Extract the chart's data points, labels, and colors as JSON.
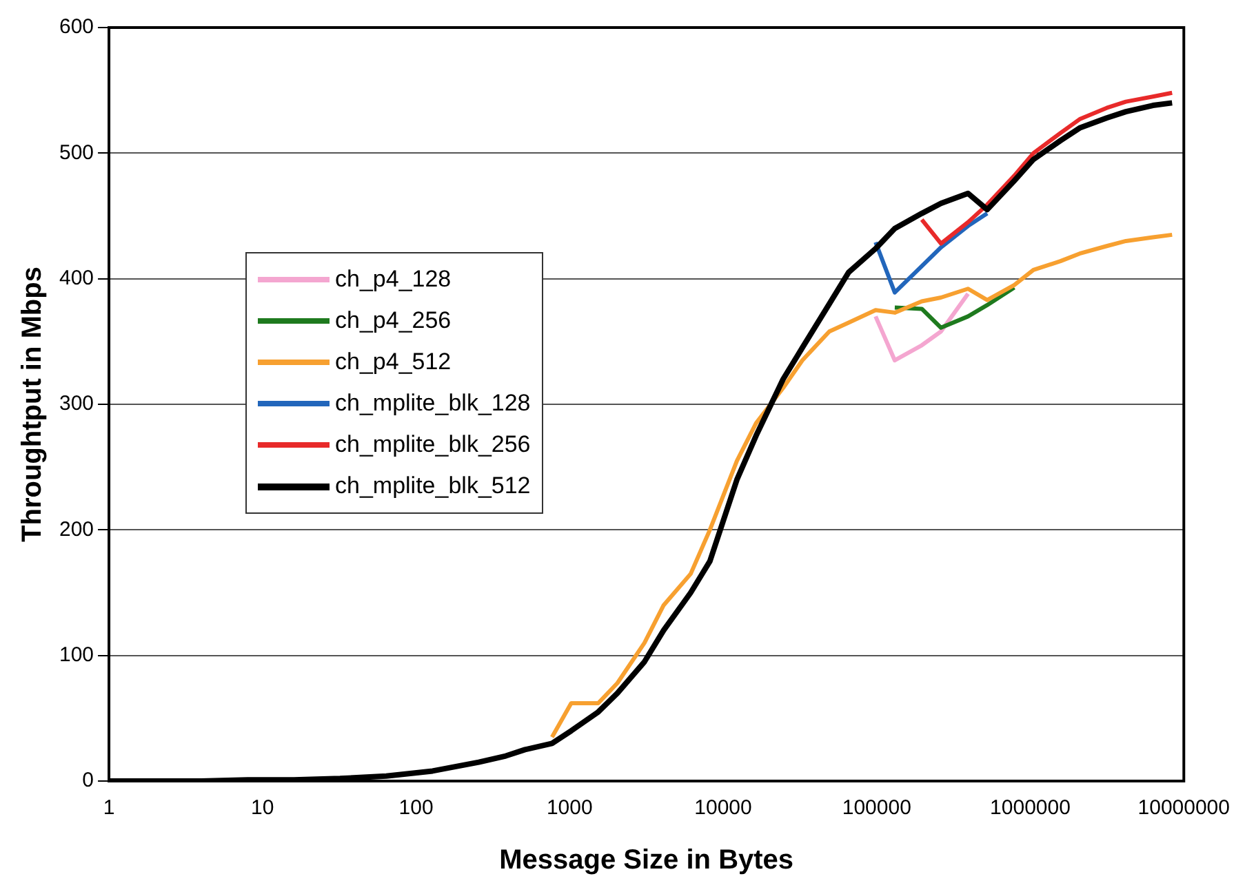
{
  "chart_data": {
    "type": "line",
    "xlabel": "Message Size in Bytes",
    "ylabel": "Throughtput in Mbps",
    "x": [
      1,
      2,
      4,
      8,
      16,
      32,
      64,
      128,
      256,
      384,
      512,
      768,
      1024,
      1536,
      2048,
      3072,
      4096,
      6144,
      8192,
      12288,
      16384,
      24576,
      32768,
      49152,
      65536,
      98304,
      131072,
      196608,
      262144,
      393216,
      524288,
      786432,
      1048576,
      1572864,
      2097152,
      3145728,
      4194304,
      6291456,
      8388608
    ],
    "series": [
      {
        "name": "ch_p4_128",
        "color": "#f4a6d0",
        "values": [
          null,
          null,
          null,
          null,
          null,
          null,
          null,
          null,
          null,
          null,
          null,
          null,
          null,
          null,
          null,
          null,
          null,
          null,
          null,
          null,
          null,
          null,
          null,
          null,
          null,
          370,
          335,
          347,
          358,
          388,
          null,
          null,
          null,
          null,
          null,
          null,
          null,
          null,
          null
        ]
      },
      {
        "name": "ch_p4_256",
        "color": "#1e7a1e",
        "values": [
          null,
          null,
          null,
          null,
          null,
          null,
          null,
          null,
          null,
          null,
          null,
          null,
          null,
          null,
          null,
          null,
          null,
          null,
          null,
          null,
          null,
          null,
          null,
          null,
          null,
          null,
          377,
          376,
          361,
          370,
          379,
          393,
          null,
          null,
          null,
          null,
          null,
          null,
          null
        ]
      },
      {
        "name": "ch_p4_512",
        "color": "#f7a030",
        "values": [
          null,
          null,
          null,
          null,
          null,
          null,
          null,
          null,
          null,
          null,
          null,
          35,
          62,
          62,
          78,
          110,
          140,
          165,
          200,
          255,
          285,
          313,
          335,
          358,
          365,
          375,
          373,
          382,
          385,
          392,
          383,
          395,
          407,
          414,
          420,
          426,
          430,
          433,
          435
        ]
      },
      {
        "name": "ch_mplite_blk_128",
        "color": "#2266bb",
        "values": [
          null,
          null,
          null,
          null,
          null,
          null,
          null,
          null,
          null,
          null,
          null,
          null,
          null,
          null,
          null,
          null,
          null,
          null,
          null,
          null,
          null,
          null,
          null,
          null,
          null,
          429,
          389,
          410,
          425,
          442,
          452,
          null,
          null,
          null,
          null,
          null,
          null,
          null,
          null
        ]
      },
      {
        "name": "ch_mplite_blk_256",
        "color": "#e82a2a",
        "values": [
          null,
          null,
          null,
          null,
          null,
          null,
          null,
          null,
          null,
          null,
          null,
          null,
          null,
          null,
          null,
          null,
          null,
          null,
          null,
          null,
          null,
          null,
          null,
          null,
          null,
          null,
          null,
          447,
          428,
          445,
          459,
          482,
          500,
          516,
          527,
          536,
          541,
          545,
          548
        ]
      },
      {
        "name": "ch_mplite_blk_512",
        "color": "#000000",
        "values": [
          0,
          0,
          0,
          1,
          1,
          2,
          4,
          8,
          15,
          20,
          25,
          30,
          40,
          55,
          70,
          95,
          120,
          150,
          175,
          240,
          275,
          320,
          345,
          380,
          405,
          424,
          440,
          452,
          460,
          468,
          455,
          478,
          495,
          510,
          520,
          528,
          533,
          538,
          540
        ]
      }
    ],
    "log": "x",
    "xlim": [
      1,
      10000000
    ],
    "xticks": [
      1,
      10,
      100,
      1000,
      10000,
      100000,
      1000000,
      10000000
    ],
    "ylim": [
      0,
      600
    ],
    "yticks": [
      0,
      100,
      200,
      300,
      400,
      500,
      600
    ],
    "grid": "y",
    "legend": "left",
    "marker": "none",
    "line_style": "solid"
  }
}
